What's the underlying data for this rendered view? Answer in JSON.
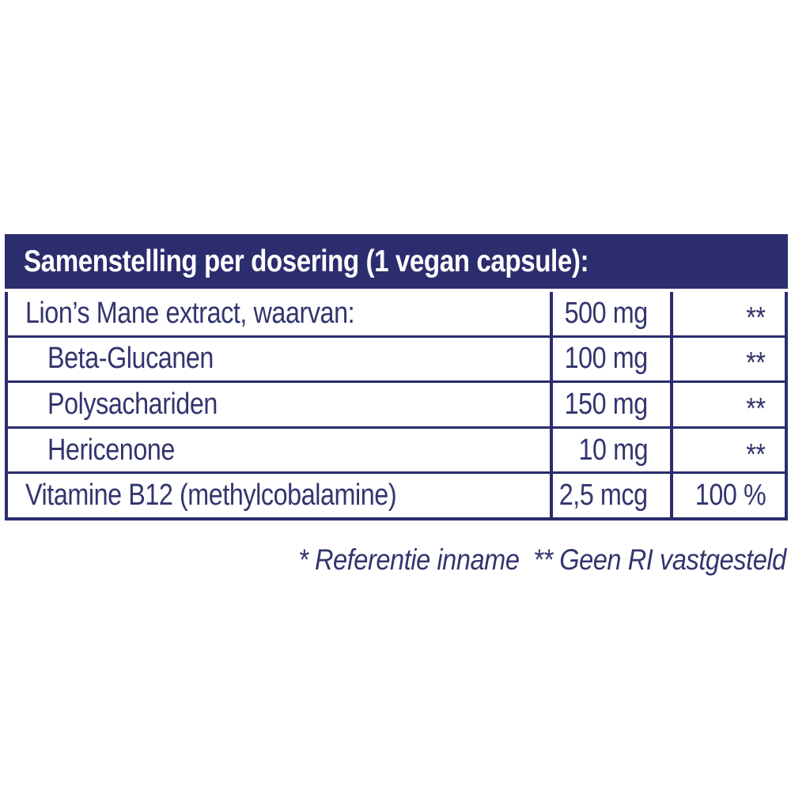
{
  "colors": {
    "navy": "#2b2d6e",
    "text": "#32356e",
    "header_text": "#ffffff",
    "background": "#ffffff"
  },
  "table": {
    "header": "Samenstelling per dosering (1 vegan capsule):",
    "rows": [
      {
        "name": "Lion’s Mane extract, waarvan:",
        "amount": "500 mg",
        "ri": "**",
        "indent": false
      },
      {
        "name": "Beta-Glucanen",
        "amount": "100 mg",
        "ri": "**",
        "indent": true
      },
      {
        "name": "Polysachariden",
        "amount": "150 mg",
        "ri": "**",
        "indent": true
      },
      {
        "name": "Hericenone",
        "amount": "10 mg",
        "ri": "**",
        "indent": true
      },
      {
        "name": "Vitamine B12 (methylcobalamine)",
        "amount": "2,5 mcg",
        "ri": "100 %",
        "indent": false
      }
    ]
  },
  "footnotes": {
    "reference": "* Referentie inname",
    "no_ri": "** Geen RI vastgesteld"
  }
}
